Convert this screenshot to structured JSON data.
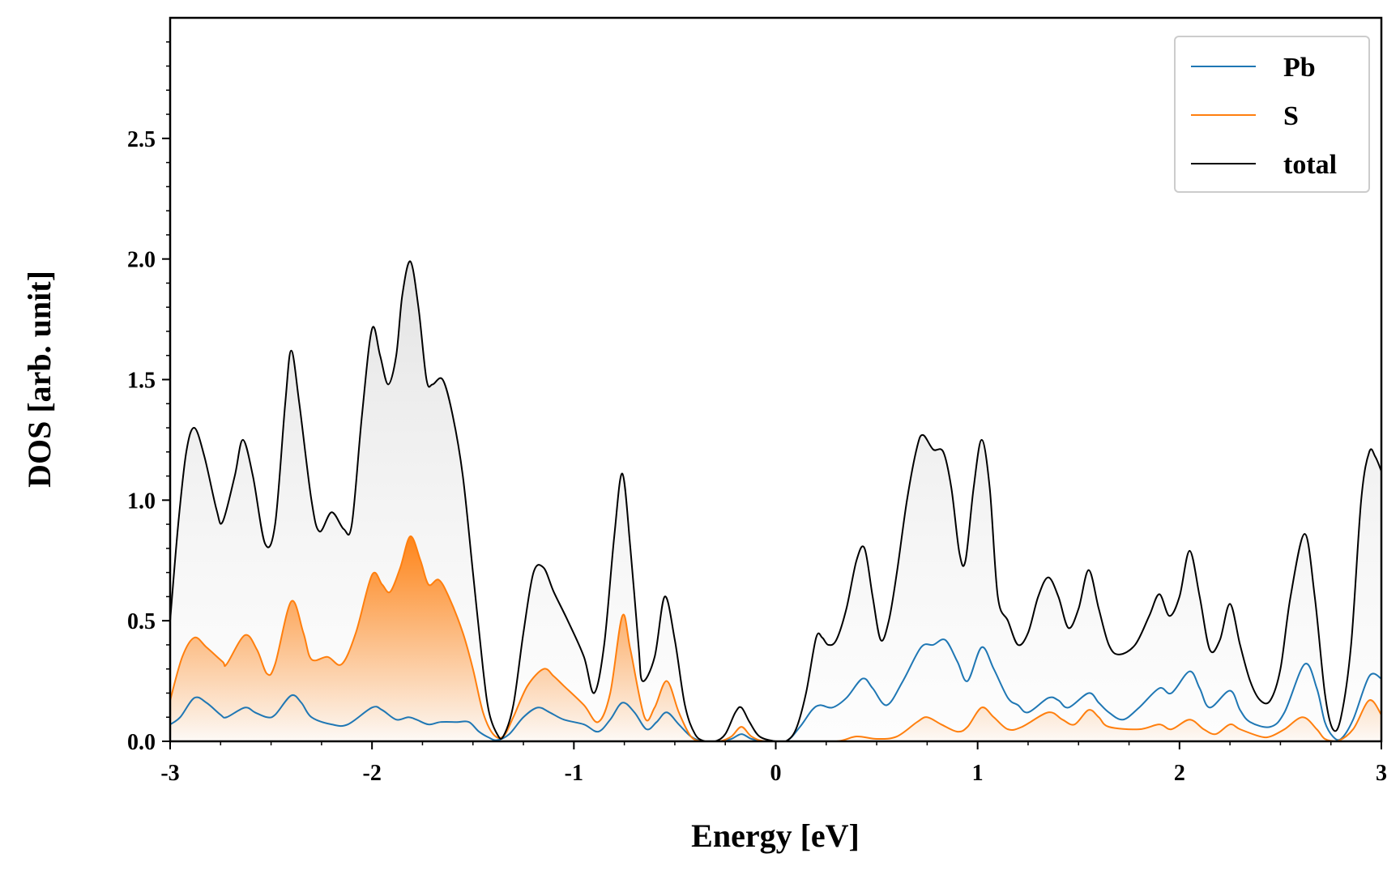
{
  "chart_data": {
    "type": "line",
    "xlabel": "Energy [eV]",
    "ylabel": "DOS [arb. unit]",
    "xlim": [
      -3,
      3
    ],
    "ylim": [
      0,
      3.0
    ],
    "xticks": [
      -3,
      -2,
      -1,
      0,
      1,
      2,
      3
    ],
    "xtick_labels": [
      "-3",
      "-2",
      "-1",
      "0",
      "1",
      "2",
      "3"
    ],
    "yticks": [
      0,
      0.5,
      1.0,
      1.5,
      2.0,
      2.5
    ],
    "ytick_labels": [
      "0.0",
      "0.5",
      "1.0",
      "1.5",
      "2.0",
      "2.5"
    ],
    "grid": false,
    "legend_position": "top-right",
    "series": [
      {
        "name": "Pb",
        "color": "#1f77b4",
        "filled": false,
        "points": [
          [
            -3.0,
            0.07
          ],
          [
            -2.95,
            0.1
          ],
          [
            -2.88,
            0.18
          ],
          [
            -2.82,
            0.16
          ],
          [
            -2.75,
            0.11
          ],
          [
            -2.72,
            0.1
          ],
          [
            -2.63,
            0.14
          ],
          [
            -2.58,
            0.12
          ],
          [
            -2.52,
            0.1
          ],
          [
            -2.48,
            0.11
          ],
          [
            -2.4,
            0.19
          ],
          [
            -2.35,
            0.16
          ],
          [
            -2.3,
            0.1
          ],
          [
            -2.2,
            0.07
          ],
          [
            -2.12,
            0.07
          ],
          [
            -2.0,
            0.14
          ],
          [
            -1.95,
            0.13
          ],
          [
            -1.88,
            0.09
          ],
          [
            -1.82,
            0.1
          ],
          [
            -1.78,
            0.09
          ],
          [
            -1.72,
            0.07
          ],
          [
            -1.66,
            0.08
          ],
          [
            -1.58,
            0.08
          ],
          [
            -1.52,
            0.08
          ],
          [
            -1.47,
            0.04
          ],
          [
            -1.42,
            0.015
          ],
          [
            -1.38,
            0.005
          ],
          [
            -1.32,
            0.03
          ],
          [
            -1.25,
            0.1
          ],
          [
            -1.18,
            0.14
          ],
          [
            -1.12,
            0.12
          ],
          [
            -1.05,
            0.09
          ],
          [
            -0.95,
            0.07
          ],
          [
            -0.88,
            0.04
          ],
          [
            -0.82,
            0.09
          ],
          [
            -0.76,
            0.16
          ],
          [
            -0.7,
            0.12
          ],
          [
            -0.64,
            0.05
          ],
          [
            -0.59,
            0.08
          ],
          [
            -0.54,
            0.12
          ],
          [
            -0.48,
            0.07
          ],
          [
            -0.42,
            0.02
          ],
          [
            -0.36,
            0.0
          ],
          [
            -0.28,
            0.0
          ],
          [
            -0.22,
            0.01
          ],
          [
            -0.17,
            0.03
          ],
          [
            -0.12,
            0.01
          ],
          [
            -0.05,
            0.0
          ],
          [
            0.05,
            0.0
          ],
          [
            0.12,
            0.06
          ],
          [
            0.18,
            0.13
          ],
          [
            0.22,
            0.15
          ],
          [
            0.28,
            0.14
          ],
          [
            0.35,
            0.18
          ],
          [
            0.43,
            0.26
          ],
          [
            0.48,
            0.22
          ],
          [
            0.55,
            0.15
          ],
          [
            0.63,
            0.25
          ],
          [
            0.72,
            0.39
          ],
          [
            0.78,
            0.4
          ],
          [
            0.84,
            0.42
          ],
          [
            0.9,
            0.33
          ],
          [
            0.95,
            0.25
          ],
          [
            1.02,
            0.39
          ],
          [
            1.08,
            0.3
          ],
          [
            1.15,
            0.18
          ],
          [
            1.2,
            0.15
          ],
          [
            1.25,
            0.12
          ],
          [
            1.35,
            0.18
          ],
          [
            1.4,
            0.17
          ],
          [
            1.45,
            0.14
          ],
          [
            1.55,
            0.2
          ],
          [
            1.6,
            0.16
          ],
          [
            1.65,
            0.12
          ],
          [
            1.72,
            0.09
          ],
          [
            1.8,
            0.14
          ],
          [
            1.9,
            0.22
          ],
          [
            1.96,
            0.2
          ],
          [
            2.05,
            0.29
          ],
          [
            2.1,
            0.22
          ],
          [
            2.15,
            0.14
          ],
          [
            2.25,
            0.21
          ],
          [
            2.3,
            0.13
          ],
          [
            2.35,
            0.08
          ],
          [
            2.45,
            0.06
          ],
          [
            2.52,
            0.12
          ],
          [
            2.62,
            0.32
          ],
          [
            2.68,
            0.22
          ],
          [
            2.72,
            0.08
          ],
          [
            2.76,
            0.02
          ],
          [
            2.8,
            0.01
          ],
          [
            2.86,
            0.09
          ],
          [
            2.94,
            0.27
          ],
          [
            3.0,
            0.26
          ]
        ]
      },
      {
        "name": "S",
        "color": "#ff7f0e",
        "filled": true,
        "points": [
          [
            -3.0,
            0.17
          ],
          [
            -2.94,
            0.35
          ],
          [
            -2.88,
            0.43
          ],
          [
            -2.82,
            0.39
          ],
          [
            -2.74,
            0.33
          ],
          [
            -2.72,
            0.32
          ],
          [
            -2.63,
            0.44
          ],
          [
            -2.57,
            0.38
          ],
          [
            -2.52,
            0.28
          ],
          [
            -2.48,
            0.32
          ],
          [
            -2.4,
            0.58
          ],
          [
            -2.34,
            0.45
          ],
          [
            -2.3,
            0.34
          ],
          [
            -2.22,
            0.35
          ],
          [
            -2.15,
            0.32
          ],
          [
            -2.08,
            0.45
          ],
          [
            -2.0,
            0.69
          ],
          [
            -1.95,
            0.65
          ],
          [
            -1.91,
            0.62
          ],
          [
            -1.86,
            0.72
          ],
          [
            -1.81,
            0.85
          ],
          [
            -1.76,
            0.75
          ],
          [
            -1.72,
            0.65
          ],
          [
            -1.67,
            0.67
          ],
          [
            -1.62,
            0.6
          ],
          [
            -1.55,
            0.45
          ],
          [
            -1.5,
            0.3
          ],
          [
            -1.45,
            0.12
          ],
          [
            -1.4,
            0.03
          ],
          [
            -1.35,
            0.02
          ],
          [
            -1.3,
            0.1
          ],
          [
            -1.23,
            0.23
          ],
          [
            -1.15,
            0.3
          ],
          [
            -1.1,
            0.27
          ],
          [
            -1.05,
            0.23
          ],
          [
            -0.95,
            0.15
          ],
          [
            -0.88,
            0.08
          ],
          [
            -0.82,
            0.2
          ],
          [
            -0.76,
            0.52
          ],
          [
            -0.72,
            0.38
          ],
          [
            -0.65,
            0.1
          ],
          [
            -0.6,
            0.14
          ],
          [
            -0.54,
            0.25
          ],
          [
            -0.48,
            0.12
          ],
          [
            -0.42,
            0.02
          ],
          [
            -0.36,
            0.0
          ],
          [
            -0.28,
            0.0
          ],
          [
            -0.22,
            0.02
          ],
          [
            -0.17,
            0.06
          ],
          [
            -0.12,
            0.02
          ],
          [
            -0.05,
            0.0
          ],
          [
            0.1,
            0.0
          ],
          [
            0.3,
            0.0
          ],
          [
            0.4,
            0.02
          ],
          [
            0.5,
            0.01
          ],
          [
            0.6,
            0.02
          ],
          [
            0.7,
            0.08
          ],
          [
            0.75,
            0.1
          ],
          [
            0.82,
            0.07
          ],
          [
            0.9,
            0.04
          ],
          [
            0.95,
            0.06
          ],
          [
            1.02,
            0.14
          ],
          [
            1.08,
            0.1
          ],
          [
            1.15,
            0.05
          ],
          [
            1.22,
            0.06
          ],
          [
            1.35,
            0.12
          ],
          [
            1.42,
            0.09
          ],
          [
            1.48,
            0.07
          ],
          [
            1.55,
            0.13
          ],
          [
            1.6,
            0.1
          ],
          [
            1.65,
            0.06
          ],
          [
            1.8,
            0.05
          ],
          [
            1.9,
            0.07
          ],
          [
            1.96,
            0.05
          ],
          [
            2.05,
            0.09
          ],
          [
            2.12,
            0.05
          ],
          [
            2.18,
            0.03
          ],
          [
            2.25,
            0.07
          ],
          [
            2.3,
            0.05
          ],
          [
            2.4,
            0.02
          ],
          [
            2.45,
            0.02
          ],
          [
            2.52,
            0.05
          ],
          [
            2.61,
            0.1
          ],
          [
            2.68,
            0.05
          ],
          [
            2.72,
            0.01
          ],
          [
            2.78,
            0.0
          ],
          [
            2.86,
            0.05
          ],
          [
            2.94,
            0.17
          ],
          [
            3.0,
            0.11
          ]
        ]
      },
      {
        "name": "total",
        "color": "#000000",
        "filled": true,
        "points": [
          [
            -3.0,
            0.5
          ],
          [
            -2.96,
            0.9
          ],
          [
            -2.92,
            1.2
          ],
          [
            -2.88,
            1.3
          ],
          [
            -2.83,
            1.18
          ],
          [
            -2.77,
            0.96
          ],
          [
            -2.74,
            0.91
          ],
          [
            -2.68,
            1.1
          ],
          [
            -2.64,
            1.25
          ],
          [
            -2.59,
            1.1
          ],
          [
            -2.53,
            0.82
          ],
          [
            -2.48,
            0.9
          ],
          [
            -2.43,
            1.4
          ],
          [
            -2.4,
            1.62
          ],
          [
            -2.36,
            1.4
          ],
          [
            -2.3,
            1.0
          ],
          [
            -2.26,
            0.87
          ],
          [
            -2.2,
            0.95
          ],
          [
            -2.14,
            0.88
          ],
          [
            -2.1,
            0.9
          ],
          [
            -2.05,
            1.35
          ],
          [
            -2.0,
            1.71
          ],
          [
            -1.96,
            1.6
          ],
          [
            -1.92,
            1.48
          ],
          [
            -1.88,
            1.6
          ],
          [
            -1.85,
            1.85
          ],
          [
            -1.81,
            1.99
          ],
          [
            -1.77,
            1.8
          ],
          [
            -1.73,
            1.5
          ],
          [
            -1.7,
            1.48
          ],
          [
            -1.65,
            1.5
          ],
          [
            -1.6,
            1.35
          ],
          [
            -1.55,
            1.1
          ],
          [
            -1.5,
            0.7
          ],
          [
            -1.45,
            0.3
          ],
          [
            -1.42,
            0.12
          ],
          [
            -1.38,
            0.03
          ],
          [
            -1.35,
            0.02
          ],
          [
            -1.3,
            0.15
          ],
          [
            -1.25,
            0.45
          ],
          [
            -1.2,
            0.7
          ],
          [
            -1.15,
            0.72
          ],
          [
            -1.1,
            0.62
          ],
          [
            -1.03,
            0.5
          ],
          [
            -0.95,
            0.35
          ],
          [
            -0.9,
            0.2
          ],
          [
            -0.85,
            0.4
          ],
          [
            -0.8,
            0.85
          ],
          [
            -0.76,
            1.11
          ],
          [
            -0.72,
            0.8
          ],
          [
            -0.68,
            0.4
          ],
          [
            -0.66,
            0.25
          ],
          [
            -0.6,
            0.35
          ],
          [
            -0.55,
            0.6
          ],
          [
            -0.5,
            0.42
          ],
          [
            -0.45,
            0.15
          ],
          [
            -0.4,
            0.03
          ],
          [
            -0.35,
            0.0
          ],
          [
            -0.3,
            0.0
          ],
          [
            -0.25,
            0.03
          ],
          [
            -0.2,
            0.12
          ],
          [
            -0.17,
            0.14
          ],
          [
            -0.13,
            0.08
          ],
          [
            -0.08,
            0.02
          ],
          [
            0.0,
            0.0
          ],
          [
            0.05,
            0.0
          ],
          [
            0.1,
            0.05
          ],
          [
            0.15,
            0.2
          ],
          [
            0.2,
            0.43
          ],
          [
            0.23,
            0.43
          ],
          [
            0.26,
            0.4
          ],
          [
            0.3,
            0.42
          ],
          [
            0.35,
            0.55
          ],
          [
            0.4,
            0.75
          ],
          [
            0.44,
            0.8
          ],
          [
            0.48,
            0.6
          ],
          [
            0.52,
            0.42
          ],
          [
            0.56,
            0.5
          ],
          [
            0.6,
            0.7
          ],
          [
            0.65,
            1.0
          ],
          [
            0.7,
            1.22
          ],
          [
            0.73,
            1.27
          ],
          [
            0.78,
            1.21
          ],
          [
            0.83,
            1.2
          ],
          [
            0.87,
            1.05
          ],
          [
            0.91,
            0.78
          ],
          [
            0.94,
            0.75
          ],
          [
            0.98,
            1.05
          ],
          [
            1.02,
            1.25
          ],
          [
            1.06,
            1.05
          ],
          [
            1.1,
            0.6
          ],
          [
            1.15,
            0.5
          ],
          [
            1.2,
            0.4
          ],
          [
            1.25,
            0.45
          ],
          [
            1.3,
            0.6
          ],
          [
            1.35,
            0.68
          ],
          [
            1.4,
            0.6
          ],
          [
            1.45,
            0.47
          ],
          [
            1.5,
            0.55
          ],
          [
            1.55,
            0.71
          ],
          [
            1.6,
            0.55
          ],
          [
            1.65,
            0.4
          ],
          [
            1.7,
            0.36
          ],
          [
            1.78,
            0.4
          ],
          [
            1.85,
            0.52
          ],
          [
            1.9,
            0.61
          ],
          [
            1.95,
            0.52
          ],
          [
            2.0,
            0.6
          ],
          [
            2.05,
            0.79
          ],
          [
            2.1,
            0.6
          ],
          [
            2.15,
            0.38
          ],
          [
            2.2,
            0.42
          ],
          [
            2.25,
            0.57
          ],
          [
            2.3,
            0.4
          ],
          [
            2.35,
            0.25
          ],
          [
            2.4,
            0.17
          ],
          [
            2.45,
            0.17
          ],
          [
            2.5,
            0.3
          ],
          [
            2.55,
            0.6
          ],
          [
            2.62,
            0.86
          ],
          [
            2.67,
            0.6
          ],
          [
            2.72,
            0.2
          ],
          [
            2.76,
            0.05
          ],
          [
            2.8,
            0.1
          ],
          [
            2.85,
            0.4
          ],
          [
            2.9,
            1.0
          ],
          [
            2.94,
            1.2
          ],
          [
            2.97,
            1.18
          ],
          [
            3.0,
            1.12
          ]
        ]
      }
    ]
  }
}
